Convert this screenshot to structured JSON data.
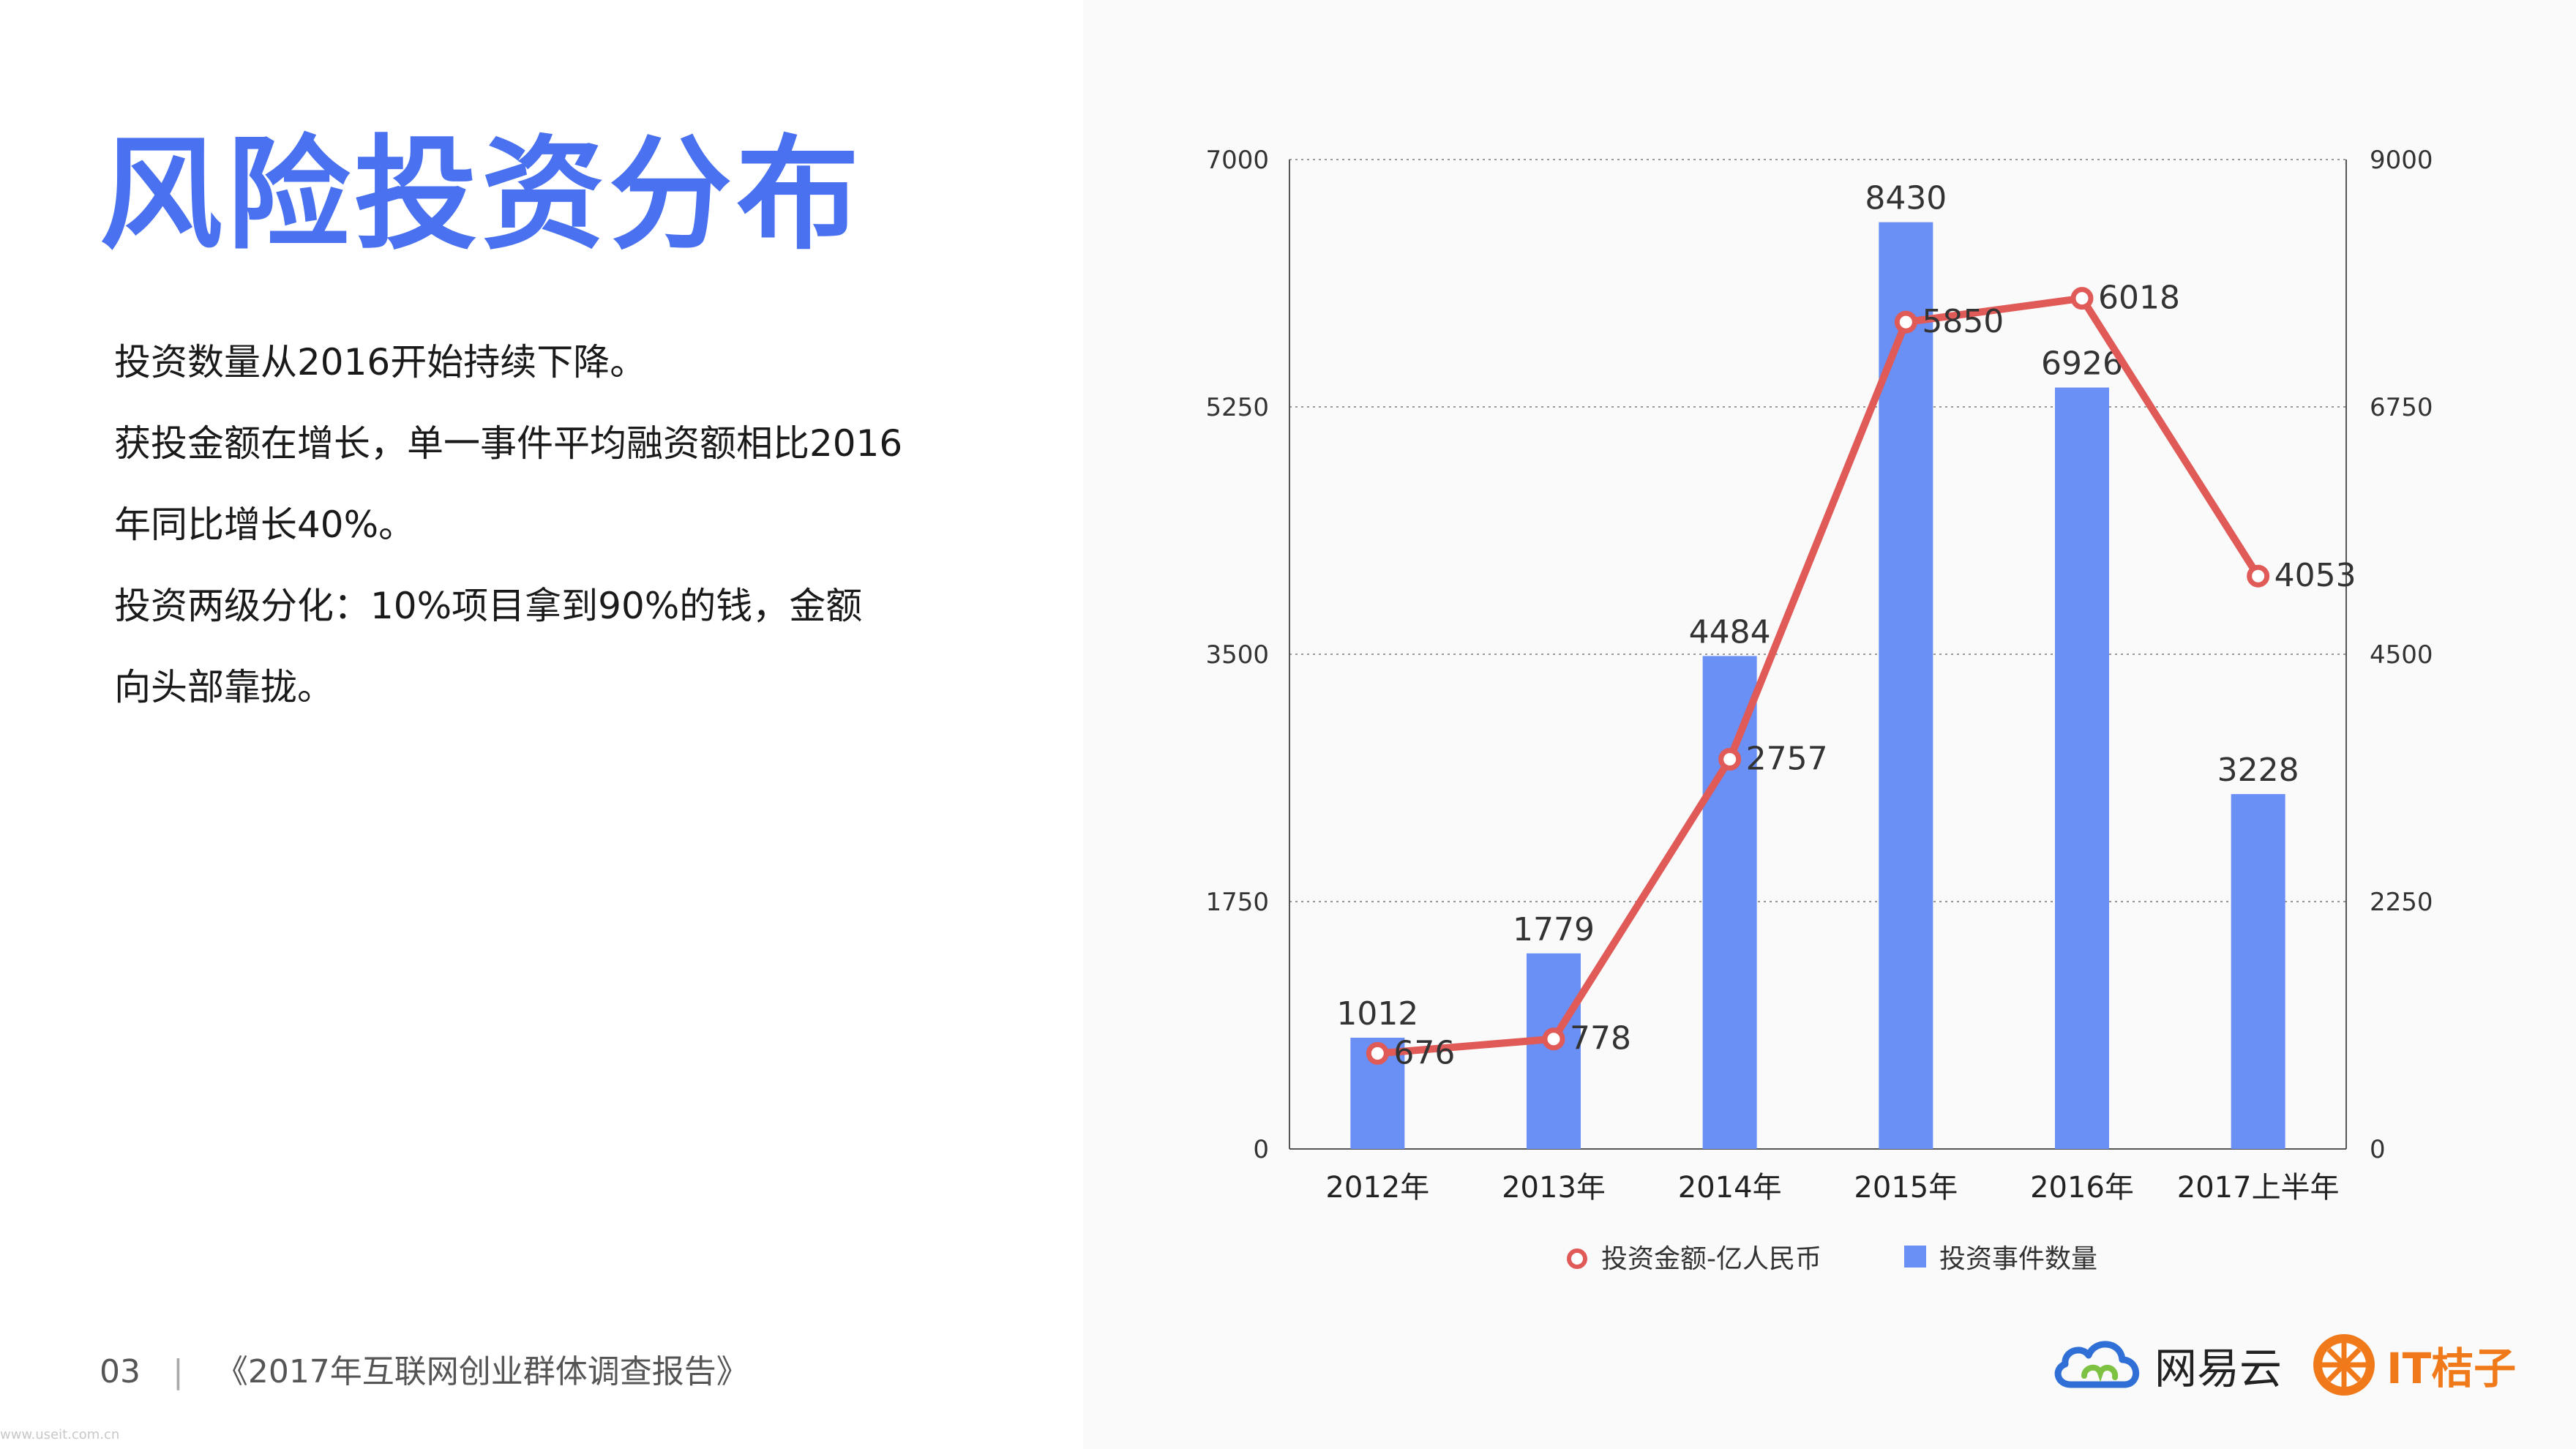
{
  "page": {
    "title": "风险投资分布",
    "description": [
      "投资数量从2016开始持续下降。",
      "获投金额在增长，单一事件平均融资额相比2016",
      "年同比增长40%。",
      "投资两级分化：10%项目拿到90%的钱，金额",
      "向头部靠拢。"
    ],
    "footer": {
      "page_number": "03",
      "separator": "|",
      "report_title": "《2017年互联网创业群体调查报告》"
    },
    "watermark": "www.useit.com.cn",
    "logos": {
      "netease": "网易云",
      "itjuzi": "IT桔子"
    }
  },
  "colors": {
    "title": "#4a72f0",
    "bar": "#6a8ff5",
    "line": "#e05a58",
    "grid": "#9a9a9a"
  },
  "chart_data": {
    "type": "bar",
    "categories": [
      "2012年",
      "2013年",
      "2014年",
      "2015年",
      "2016年",
      "2017上半年"
    ],
    "series": [
      {
        "name": "投资事件数量",
        "type": "bar",
        "axis": "right",
        "values": [
          1012,
          1779,
          4484,
          8430,
          6926,
          3228
        ]
      },
      {
        "name": "投资金额-亿人民币",
        "type": "line",
        "axis": "left",
        "values": [
          676,
          778,
          2757,
          5850,
          6018,
          4053
        ]
      }
    ],
    "y_left": {
      "ticks": [
        "0",
        "1750",
        "3500",
        "5250",
        "7000"
      ],
      "range": [
        0,
        7000
      ]
    },
    "y_right": {
      "ticks": [
        "0",
        "2250",
        "4500",
        "6750",
        "9000"
      ],
      "range": [
        0,
        9000
      ]
    },
    "legend": [
      "投资金额-亿人民币",
      "投资事件数量"
    ],
    "legend_position": "bottom",
    "grid": true
  }
}
